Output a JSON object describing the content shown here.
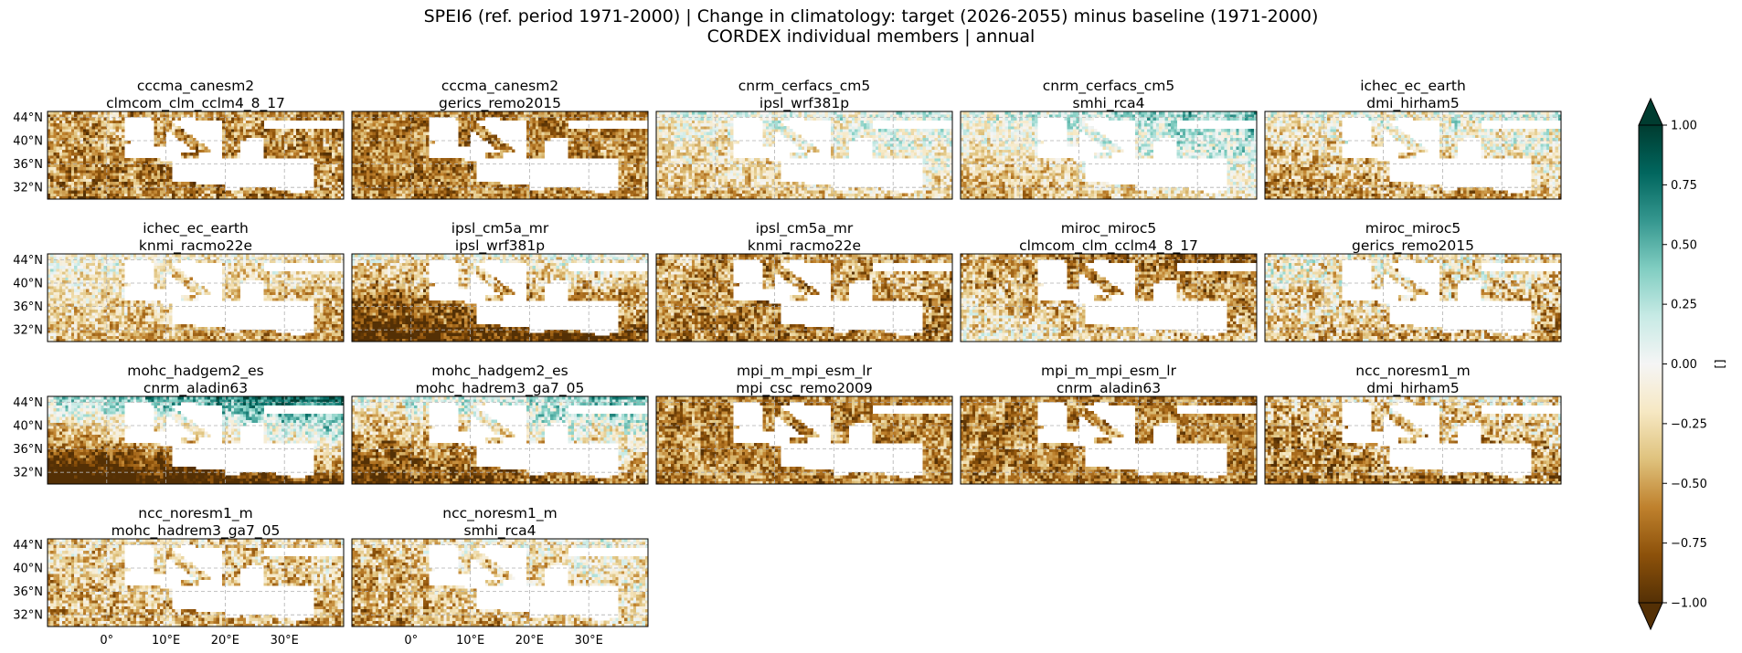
{
  "figure": {
    "title_line1": "SPEI6 (ref. period 1971-2000) | Change in climatology: target (2026-2055) minus baseline (1971-2000)",
    "title_line2": "CORDEX individual members | annual"
  },
  "chart_data": {
    "type": "heatmap",
    "description_values": "map grid per panel; cell values in SPEI units, sampled on a 0.5 degree grid",
    "extent": {
      "lon": [
        -10,
        40
      ],
      "lat": [
        30,
        45
      ]
    },
    "y_ticks": [
      "44°N",
      "40°N",
      "36°N",
      "32°N"
    ],
    "y_tick_values": [
      44,
      40,
      36,
      32
    ],
    "x_ticks": [
      "0°",
      "10°E",
      "20°E",
      "30°E"
    ],
    "x_tick_values": [
      0,
      10,
      20,
      30
    ],
    "grid": true,
    "colorbar": {
      "label": "[]",
      "ticks": [
        "1.00",
        "0.75",
        "0.50",
        "0.25",
        "0.00",
        "−0.25",
        "−0.50",
        "−0.75",
        "−1.00"
      ],
      "tick_values": [
        1.0,
        0.75,
        0.5,
        0.25,
        0.0,
        -0.25,
        -0.5,
        -0.75,
        -1.0
      ],
      "range": [
        -1,
        1
      ],
      "extend": "both",
      "colormap": "BrBG",
      "colors": [
        "#543005",
        "#8c510a",
        "#bf812d",
        "#dfc27d",
        "#f6e8c3",
        "#f5f5f5",
        "#c7eae5",
        "#80cdc1",
        "#35978f",
        "#01665e",
        "#003c30"
      ]
    },
    "panels": [
      {
        "line1": "cccma_canesm2",
        "line2": "clmcom_clm_cclm4_8_17",
        "mean": -0.55,
        "north_bias": 0.05,
        "east_bias": 0.0,
        "noise": 0.35
      },
      {
        "line1": "cccma_canesm2",
        "line2": "gerics_remo2015",
        "mean": -0.6,
        "north_bias": 0.0,
        "east_bias": 0.05,
        "noise": 0.3
      },
      {
        "line1": "cnrm_cerfacs_cm5",
        "line2": "ipsl_wrf381p",
        "mean": -0.15,
        "north_bias": 0.2,
        "east_bias": 0.1,
        "noise": 0.3
      },
      {
        "line1": "cnrm_cerfacs_cm5",
        "line2": "smhi_rca4",
        "mean": -0.05,
        "north_bias": 0.3,
        "east_bias": 0.2,
        "noise": 0.3
      },
      {
        "line1": "ichec_ec_earth",
        "line2": "dmi_hirham5",
        "mean": -0.25,
        "north_bias": 0.25,
        "east_bias": 0.1,
        "noise": 0.35
      },
      {
        "line1": "ichec_ec_earth",
        "line2": "knmi_racmo22e",
        "mean": -0.3,
        "north_bias": 0.2,
        "east_bias": -0.1,
        "noise": 0.3
      },
      {
        "line1": "ipsl_cm5a_mr",
        "line2": "ipsl_wrf381p",
        "mean": -0.55,
        "north_bias": 0.45,
        "east_bias": 0.1,
        "noise": 0.35
      },
      {
        "line1": "ipsl_cm5a_mr",
        "line2": "knmi_racmo22e",
        "mean": -0.55,
        "north_bias": 0.1,
        "east_bias": 0.0,
        "noise": 0.35
      },
      {
        "line1": "miroc_miroc5",
        "line2": "clmcom_clm_cclm4_8_17",
        "mean": -0.45,
        "north_bias": -0.2,
        "east_bias": -0.1,
        "noise": 0.35
      },
      {
        "line1": "miroc_miroc5",
        "line2": "gerics_remo2015",
        "mean": -0.3,
        "north_bias": 0.15,
        "east_bias": -0.1,
        "noise": 0.4
      },
      {
        "line1": "mohc_hadgem2_es",
        "line2": "cnrm_aladin63",
        "mean": -0.3,
        "north_bias": 0.9,
        "east_bias": 0.3,
        "noise": 0.3
      },
      {
        "line1": "mohc_hadgem2_es",
        "line2": "mohc_hadrem3_ga7_05",
        "mean": -0.3,
        "north_bias": 0.55,
        "east_bias": 0.25,
        "noise": 0.35
      },
      {
        "line1": "mpi_m_mpi_esm_lr",
        "line2": "mpi_csc_remo2009",
        "mean": -0.6,
        "north_bias": 0.0,
        "east_bias": 0.0,
        "noise": 0.3
      },
      {
        "line1": "mpi_m_mpi_esm_lr",
        "line2": "cnrm_aladin63",
        "mean": -0.6,
        "north_bias": 0.0,
        "east_bias": 0.0,
        "noise": 0.3
      },
      {
        "line1": "ncc_noresm1_m",
        "line2": "dmi_hirham5",
        "mean": -0.45,
        "north_bias": 0.2,
        "east_bias": 0.1,
        "noise": 0.4
      },
      {
        "line1": "ncc_noresm1_m",
        "line2": "mohc_hadrem3_ga7_05",
        "mean": -0.35,
        "north_bias": 0.1,
        "east_bias": 0.0,
        "noise": 0.35
      },
      {
        "line1": "ncc_noresm1_m",
        "line2": "smhi_rca4",
        "mean": -0.3,
        "north_bias": 0.1,
        "east_bias": 0.15,
        "noise": 0.35
      }
    ]
  }
}
